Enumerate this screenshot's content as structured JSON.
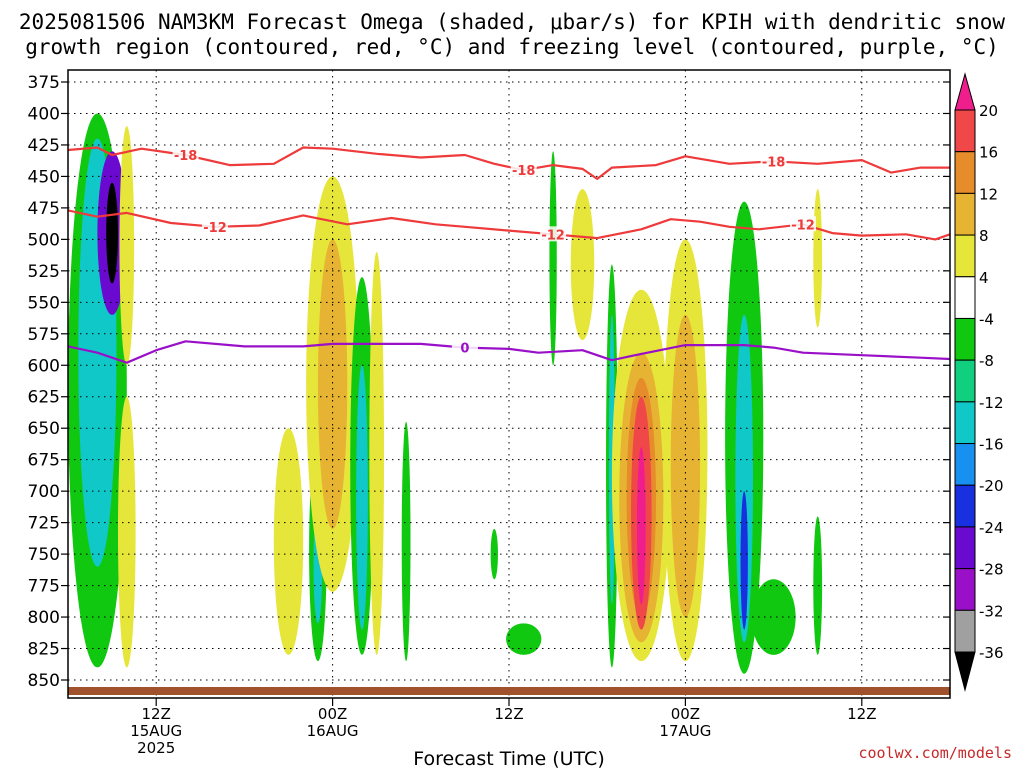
{
  "title_line1": "2025081506 NAM3KM Forecast Omega (shaded, μbar/s) for KPIH with dendritic snow",
  "title_line2": "growth region (contoured, red, °C) and freezing level (contoured, purple, °C)",
  "credit": "coolwx.com/models",
  "colors": {
    "dgz": "#ee3a3a",
    "freezing": "#9a10c8",
    "ground": "#a0522d"
  },
  "chart_data": {
    "type": "heatmap",
    "title": "2025081506 NAM3KM Forecast Omega (shaded, μbar/s) for KPIH with dendritic snow growth region (contoured, red, °C) and freezing level (contoured, purple, °C)",
    "xlabel": "Forecast Time (UTC)",
    "ylabel": "",
    "x_start": "2025-08-15 06Z",
    "x_end": "2025-08-17 18Z",
    "ylim": [
      380,
      852
    ],
    "y_axis": "pressure (hPa), increasing downward",
    "y_ticks": [
      375,
      400,
      425,
      450,
      475,
      500,
      525,
      550,
      575,
      600,
      625,
      650,
      675,
      700,
      725,
      750,
      775,
      800,
      825,
      850
    ],
    "x_ticks": [
      {
        "time": "2025-08-15 12Z",
        "label": "12Z",
        "label2": "15AUG",
        "label3": "2025"
      },
      {
        "time": "2025-08-16 00Z",
        "label": "00Z",
        "label2": "16AUG",
        "label3": ""
      },
      {
        "time": "2025-08-16 12Z",
        "label": "12Z",
        "label2": "",
        "label3": ""
      },
      {
        "time": "2025-08-17 00Z",
        "label": "00Z",
        "label2": "17AUG",
        "label3": ""
      },
      {
        "time": "2025-08-17 12Z",
        "label": "12Z",
        "label2": "",
        "label3": ""
      }
    ],
    "grid": true,
    "colorbar": {
      "position": "right",
      "levels": [
        -36,
        -32,
        -28,
        -24,
        -20,
        -16,
        -12,
        -8,
        -4,
        4,
        8,
        12,
        16,
        20
      ],
      "colors": [
        "#000000",
        "#a0a0a0",
        "#9a10c8",
        "#6a0ad0",
        "#1830e0",
        "#1890f0",
        "#10c8c8",
        "#10d080",
        "#10c810",
        "#ffffff",
        "#e6e63a",
        "#e6b432",
        "#e68c2a",
        "#f04848",
        "#f01e8c"
      ]
    },
    "series": [
      {
        "name": "-18",
        "kind": "dgz_contour",
        "points": [
          [
            "2025-08-15 06Z",
            429
          ],
          [
            "2025-08-15 08Z",
            427
          ],
          [
            "2025-08-15 09Z",
            433
          ],
          [
            "2025-08-15 11Z",
            428
          ],
          [
            "2025-08-15 14Z",
            433
          ],
          [
            "2025-08-15 17Z",
            441
          ],
          [
            "2025-08-15 20Z",
            440
          ],
          [
            "2025-08-15 22Z",
            427
          ],
          [
            "2025-08-16 00Z",
            428
          ],
          [
            "2025-08-16 03Z",
            432
          ],
          [
            "2025-08-16 06Z",
            435
          ],
          [
            "2025-08-16 09Z",
            433
          ],
          [
            "2025-08-16 11Z",
            440
          ],
          [
            "2025-08-16 13Z",
            445
          ],
          [
            "2025-08-16 15Z",
            441
          ],
          [
            "2025-08-16 17Z",
            444
          ],
          [
            "2025-08-16 18Z",
            452
          ],
          [
            "2025-08-16 19Z",
            443
          ],
          [
            "2025-08-16 22Z",
            441
          ],
          [
            "2025-08-17 00Z",
            434
          ],
          [
            "2025-08-17 03Z",
            440
          ],
          [
            "2025-08-17 06Z",
            438
          ],
          [
            "2025-08-17 09Z",
            440
          ],
          [
            "2025-08-17 12Z",
            437
          ],
          [
            "2025-08-17 14Z",
            447
          ],
          [
            "2025-08-17 16Z",
            443
          ],
          [
            "2025-08-17 18Z",
            443
          ]
        ]
      },
      {
        "name": "-12",
        "kind": "dgz_contour",
        "points": [
          [
            "2025-08-15 06Z",
            477
          ],
          [
            "2025-08-15 08Z",
            482
          ],
          [
            "2025-08-15 10Z",
            479
          ],
          [
            "2025-08-15 13Z",
            487
          ],
          [
            "2025-08-15 16Z",
            490
          ],
          [
            "2025-08-15 19Z",
            489
          ],
          [
            "2025-08-15 22Z",
            481
          ],
          [
            "2025-08-16 01Z",
            488
          ],
          [
            "2025-08-16 04Z",
            483
          ],
          [
            "2025-08-16 07Z",
            488
          ],
          [
            "2025-08-16 09Z",
            490
          ],
          [
            "2025-08-16 12Z",
            493
          ],
          [
            "2025-08-16 15Z",
            496
          ],
          [
            "2025-08-16 18Z",
            499
          ],
          [
            "2025-08-16 21Z",
            492
          ],
          [
            "2025-08-16 23Z",
            484
          ],
          [
            "2025-08-17 01Z",
            486
          ],
          [
            "2025-08-17 03Z",
            490
          ],
          [
            "2025-08-17 05Z",
            492
          ],
          [
            "2025-08-17 08Z",
            488
          ],
          [
            "2025-08-17 10Z",
            495
          ],
          [
            "2025-08-17 12Z",
            497
          ],
          [
            "2025-08-17 15Z",
            496
          ],
          [
            "2025-08-17 17Z",
            500
          ],
          [
            "2025-08-17 18Z",
            496
          ]
        ]
      },
      {
        "name": "0",
        "kind": "freezing_level",
        "points": [
          [
            "2025-08-15 06Z",
            585
          ],
          [
            "2025-08-15 08Z",
            590
          ],
          [
            "2025-08-15 10Z",
            598
          ],
          [
            "2025-08-15 12Z",
            588
          ],
          [
            "2025-08-15 14Z",
            581
          ],
          [
            "2025-08-15 18Z",
            585
          ],
          [
            "2025-08-15 22Z",
            585
          ],
          [
            "2025-08-16 00Z",
            583
          ],
          [
            "2025-08-16 06Z",
            583
          ],
          [
            "2025-08-16 09Z",
            586
          ],
          [
            "2025-08-16 12Z",
            587
          ],
          [
            "2025-08-16 14Z",
            590
          ],
          [
            "2025-08-16 17Z",
            588
          ],
          [
            "2025-08-16 19Z",
            596
          ],
          [
            "2025-08-16 21Z",
            591
          ],
          [
            "2025-08-17 00Z",
            584
          ],
          [
            "2025-08-17 04Z",
            584
          ],
          [
            "2025-08-17 06Z",
            586
          ],
          [
            "2025-08-17 08Z",
            590
          ],
          [
            "2025-08-17 12Z",
            592
          ],
          [
            "2025-08-17 16Z",
            594
          ],
          [
            "2025-08-17 18Z",
            595
          ]
        ]
      }
    ],
    "omega_cells": [
      {
        "time": "2025-08-15 06Z",
        "top": 560,
        "bottom": 680,
        "hw_hours": 0.5,
        "value": 6
      },
      {
        "time": "2025-08-15 08Z",
        "top": 400,
        "bottom": 840,
        "hw_hours": 2.0,
        "value": -6
      },
      {
        "time": "2025-08-15 08Z",
        "top": 420,
        "bottom": 760,
        "hw_hours": 1.3,
        "value": -14
      },
      {
        "time": "2025-08-15 09Z",
        "top": 430,
        "bottom": 560,
        "hw_hours": 1.0,
        "value": -26
      },
      {
        "time": "2025-08-15 09Z",
        "top": 455,
        "bottom": 535,
        "hw_hours": 0.4,
        "value": -38
      },
      {
        "time": "2025-08-15 10Z",
        "top": 410,
        "bottom": 600,
        "hw_hours": 0.5,
        "value": 6
      },
      {
        "time": "2025-08-15 10Z",
        "top": 625,
        "bottom": 840,
        "hw_hours": 0.6,
        "value": 6
      },
      {
        "time": "2025-08-15 21Z",
        "top": 650,
        "bottom": 830,
        "hw_hours": 1.0,
        "value": 6
      },
      {
        "time": "2025-08-15 23Z",
        "top": 660,
        "bottom": 835,
        "hw_hours": 0.6,
        "value": -8
      },
      {
        "time": "2025-08-15 23Z",
        "top": 710,
        "bottom": 805,
        "hw_hours": 0.3,
        "value": -16
      },
      {
        "time": "2025-08-16 00Z",
        "top": 450,
        "bottom": 780,
        "hw_hours": 1.8,
        "value": 6
      },
      {
        "time": "2025-08-16 00Z",
        "top": 500,
        "bottom": 730,
        "hw_hours": 1.0,
        "value": 10
      },
      {
        "time": "2025-08-16 02Z",
        "top": 530,
        "bottom": 830,
        "hw_hours": 0.8,
        "value": -8
      },
      {
        "time": "2025-08-16 02Z",
        "top": 600,
        "bottom": 810,
        "hw_hours": 0.4,
        "value": -16
      },
      {
        "time": "2025-08-16 03Z",
        "top": 510,
        "bottom": 830,
        "hw_hours": 0.5,
        "value": 6
      },
      {
        "time": "2025-08-16 05Z",
        "top": 645,
        "bottom": 835,
        "hw_hours": 0.3,
        "value": -8
      },
      {
        "time": "2025-08-16 11Z",
        "top": 730,
        "bottom": 770,
        "hw_hours": 0.25,
        "value": -8
      },
      {
        "time": "2025-08-16 13Z",
        "top": 805,
        "bottom": 830,
        "hw_hours": 1.2,
        "value": -8
      },
      {
        "time": "2025-08-16 15Z",
        "top": 430,
        "bottom": 600,
        "hw_hours": 0.25,
        "value": -8
      },
      {
        "time": "2025-08-16 17Z",
        "top": 460,
        "bottom": 580,
        "hw_hours": 0.8,
        "value": 6
      },
      {
        "time": "2025-08-16 19Z",
        "top": 520,
        "bottom": 840,
        "hw_hours": 0.4,
        "value": -8
      },
      {
        "time": "2025-08-16 19Z",
        "top": 560,
        "bottom": 790,
        "hw_hours": 0.2,
        "value": -16
      },
      {
        "time": "2025-08-16 21Z",
        "top": 540,
        "bottom": 835,
        "hw_hours": 2.0,
        "value": 6
      },
      {
        "time": "2025-08-16 21Z",
        "top": 590,
        "bottom": 820,
        "hw_hours": 1.5,
        "value": 10
      },
      {
        "time": "2025-08-16 21Z",
        "top": 610,
        "bottom": 800,
        "hw_hours": 1.0,
        "value": 14
      },
      {
        "time": "2025-08-16 21Z",
        "top": 625,
        "bottom": 810,
        "hw_hours": 0.7,
        "value": 18
      },
      {
        "time": "2025-08-16 21Z",
        "top": 665,
        "bottom": 790,
        "hw_hours": 0.3,
        "value": 22
      },
      {
        "time": "2025-08-17 00Z",
        "top": 500,
        "bottom": 835,
        "hw_hours": 1.5,
        "value": 6
      },
      {
        "time": "2025-08-17 00Z",
        "top": 560,
        "bottom": 800,
        "hw_hours": 1.0,
        "value": 10
      },
      {
        "time": "2025-08-17 04Z",
        "top": 470,
        "bottom": 845,
        "hw_hours": 1.3,
        "value": -8
      },
      {
        "time": "2025-08-17 04Z",
        "top": 560,
        "bottom": 820,
        "hw_hours": 0.6,
        "value": -16
      },
      {
        "time": "2025-08-17 04Z",
        "top": 700,
        "bottom": 810,
        "hw_hours": 0.25,
        "value": -22
      },
      {
        "time": "2025-08-17 06Z",
        "top": 770,
        "bottom": 830,
        "hw_hours": 1.5,
        "value": -8
      },
      {
        "time": "2025-08-17 09Z",
        "top": 720,
        "bottom": 830,
        "hw_hours": 0.3,
        "value": -8
      },
      {
        "time": "2025-08-17 09Z",
        "top": 460,
        "bottom": 570,
        "hw_hours": 0.3,
        "value": 6
      }
    ]
  }
}
